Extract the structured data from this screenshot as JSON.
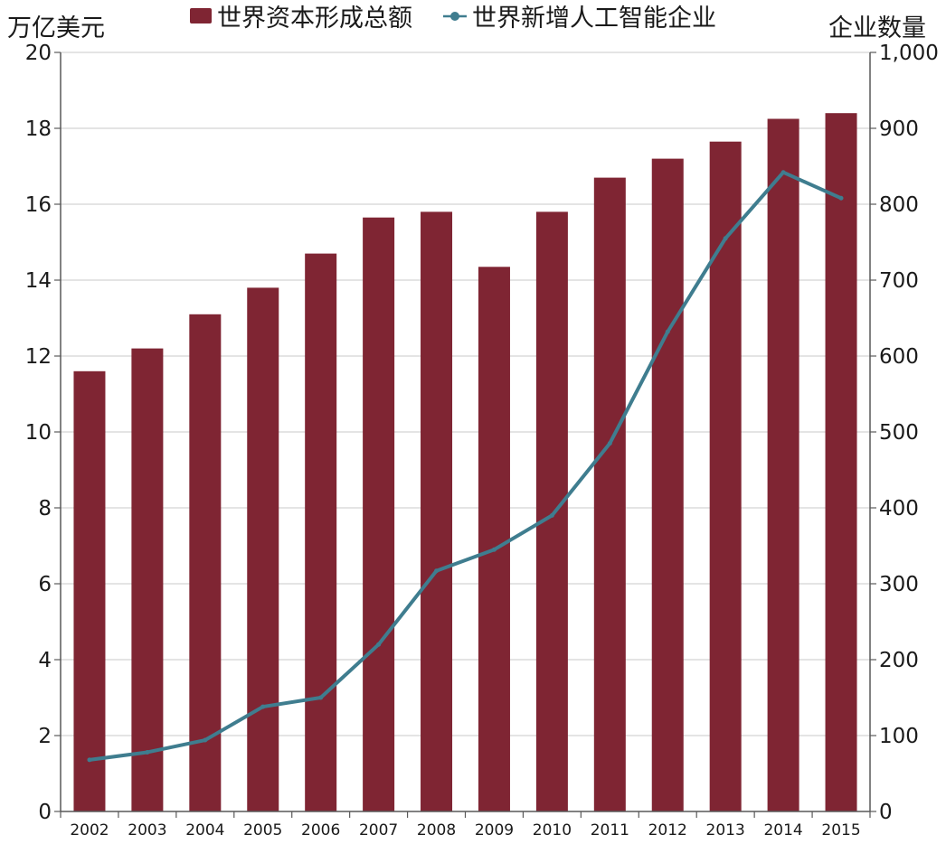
{
  "chart_data": {
    "type": "bar",
    "categories": [
      "2002",
      "2003",
      "2004",
      "2005",
      "2006",
      "2007",
      "2008",
      "2009",
      "2010",
      "2011",
      "2012",
      "2013",
      "2014",
      "2015"
    ],
    "series": [
      {
        "name": "世界资本形成总额",
        "type": "bar",
        "axis": "left",
        "color": "#7f2533",
        "values": [
          11.6,
          12.2,
          13.1,
          13.8,
          14.7,
          15.65,
          15.8,
          14.35,
          15.8,
          16.7,
          17.2,
          17.65,
          18.25,
          18.4
        ]
      },
      {
        "name": "世界新增人工智能企业",
        "type": "line",
        "axis": "right",
        "color": "#3f7d8f",
        "values": [
          68,
          78,
          94,
          138,
          150,
          220,
          317,
          345,
          390,
          485,
          632,
          755,
          842,
          808
        ]
      }
    ],
    "ylabel_left": "万亿美元",
    "ylabel_right": "企业数量",
    "ylim_left": [
      0,
      20
    ],
    "ylim_right": [
      0,
      1000
    ],
    "yticks_left": [
      "0",
      "2",
      "4",
      "6",
      "8",
      "10",
      "12",
      "14",
      "16",
      "18",
      "20"
    ],
    "yticks_right": [
      "0",
      "100",
      "200",
      "300",
      "400",
      "500",
      "600",
      "700",
      "800",
      "900",
      "1,000"
    ],
    "grid": true,
    "legend_position": "top-center"
  }
}
